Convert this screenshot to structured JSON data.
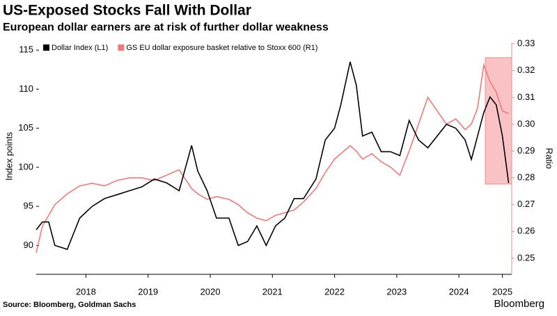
{
  "chart_data": {
    "type": "line",
    "title": "US-Exposed Stocks Fall With Dollar",
    "subtitle": "European dollar earners are at risk of further dollar weakness",
    "y_label": "Index points",
    "y2_label": "Ratio",
    "source": "Source: Bloomberg, Goldman Sachs",
    "brand": "Bloomberg",
    "x": [
      2017.7,
      2017.8,
      2017.9,
      2018.0,
      2018.2,
      2018.4,
      2018.6,
      2018.8,
      2019.0,
      2019.2,
      2019.4,
      2019.6,
      2019.8,
      2020.0,
      2020.2,
      2020.3,
      2020.45,
      2020.6,
      2020.8,
      2020.95,
      2021.1,
      2021.25,
      2021.4,
      2021.55,
      2021.7,
      2021.85,
      2022.0,
      2022.2,
      2022.35,
      2022.5,
      2022.6,
      2022.75,
      2022.85,
      2022.95,
      2023.1,
      2023.25,
      2023.4,
      2023.55,
      2023.7,
      2023.85,
      2024.0,
      2024.15,
      2024.3,
      2024.45,
      2024.6,
      2024.7,
      2024.8,
      2024.9,
      2025.0,
      2025.1,
      2025.2,
      2025.3
    ],
    "series": [
      {
        "name": "Dollar Index (L1)",
        "color": "#000000",
        "axis": "y",
        "values": [
          92,
          93,
          93,
          90,
          89.5,
          93.5,
          95,
          96,
          96.5,
          97,
          97.5,
          98.5,
          98,
          97,
          102.8,
          99.5,
          97,
          93.5,
          93.5,
          90,
          90.5,
          92.5,
          90,
          92.5,
          93.5,
          96,
          96,
          98.5,
          103.5,
          105,
          108,
          113.5,
          110.5,
          104,
          104.5,
          102,
          102,
          101.5,
          106,
          103.5,
          102.5,
          104,
          105.5,
          105,
          103.5,
          101,
          104,
          107,
          109,
          108,
          104,
          98
        ]
      },
      {
        "name": "GS EU dollar exposure basket relative to Stoxx 600 (R1)",
        "color": "#f07878",
        "axis": "y2",
        "values": [
          0.252,
          0.262,
          0.266,
          0.27,
          0.274,
          0.277,
          0.278,
          0.277,
          0.279,
          0.28,
          0.28,
          0.279,
          0.281,
          0.283,
          0.276,
          0.274,
          0.272,
          0.273,
          0.272,
          0.27,
          0.267,
          0.265,
          0.264,
          0.266,
          0.267,
          0.268,
          0.271,
          0.276,
          0.282,
          0.287,
          0.289,
          0.292,
          0.29,
          0.287,
          0.289,
          0.286,
          0.284,
          0.281,
          0.29,
          0.3,
          0.31,
          0.305,
          0.3,
          0.302,
          0.298,
          0.3,
          0.306,
          0.322,
          0.316,
          0.312,
          0.305,
          0.304
        ]
      }
    ],
    "xlim": [
      2017.7,
      2025.35
    ],
    "xticks": [
      {
        "value": 2018.5,
        "label": "2018"
      },
      {
        "value": 2019.5,
        "label": "2019"
      },
      {
        "value": 2020.5,
        "label": "2020"
      },
      {
        "value": 2021.5,
        "label": "2021"
      },
      {
        "value": 2022.5,
        "label": "2022"
      },
      {
        "value": 2023.5,
        "label": "2023"
      },
      {
        "value": 2024.5,
        "label": "2024"
      },
      {
        "value": 2025.2,
        "label": "2025"
      }
    ],
    "ylim": [
      86.3,
      115.9
    ],
    "yticks": [
      90,
      95,
      100,
      105,
      110,
      115
    ],
    "y2lim": [
      0.244,
      0.3303
    ],
    "y2ticks": [
      0.25,
      0.26,
      0.27,
      0.28,
      0.29,
      {
        "value": 0.3,
        "label": "0.30"
      },
      0.31,
      0.32,
      0.33
    ],
    "highlight_color": "#f8b4b8"
  }
}
